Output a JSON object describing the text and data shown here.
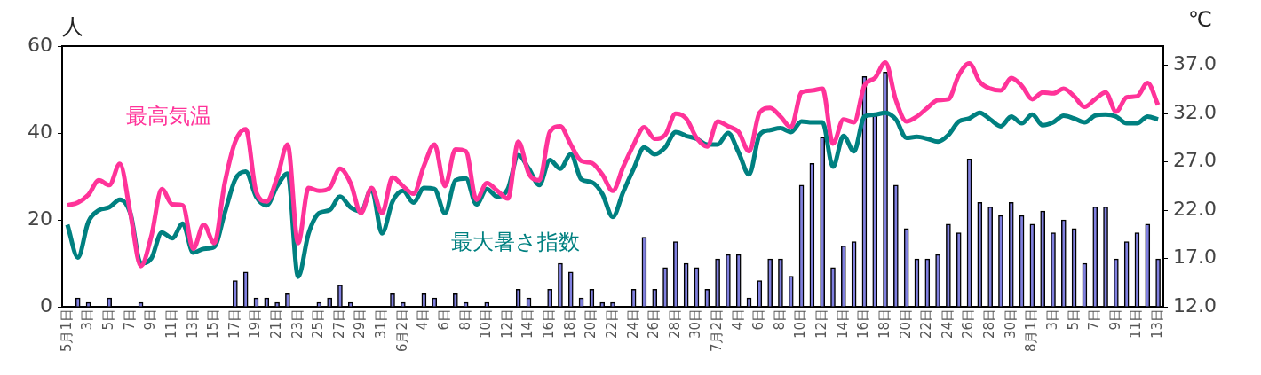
{
  "chart_data": {
    "type": "bar",
    "ylabel": "人",
    "y2label": "℃",
    "categories": [
      "5月1日",
      null,
      "3日",
      null,
      "5日",
      null,
      "7日",
      null,
      "9日",
      null,
      "11日",
      null,
      "13日",
      null,
      "15日",
      null,
      "17日",
      null,
      "19日",
      null,
      "21日",
      null,
      "23日",
      null,
      "25日",
      null,
      "27日",
      null,
      "29日",
      null,
      "31日",
      null,
      "6月2日",
      null,
      "4日",
      null,
      "6日",
      null,
      "8日",
      null,
      "10日",
      null,
      "12日",
      null,
      "14日",
      null,
      "16日",
      null,
      "18日",
      null,
      "20日",
      null,
      "22日",
      null,
      "24日",
      null,
      "26日",
      null,
      "28日",
      null,
      "30日",
      null,
      "7月2日",
      null,
      "4日",
      null,
      "6日",
      null,
      "8日",
      null,
      "10日",
      null,
      "12日",
      null,
      "14日",
      null,
      "16日",
      null,
      "18日",
      null,
      "20日",
      null,
      "22日",
      null,
      "24日",
      null,
      "26日",
      null,
      "28日",
      null,
      "30日",
      null,
      "8月1日",
      null,
      "3日",
      null,
      "5日",
      null,
      "7日",
      null,
      "9日",
      null,
      "11日",
      null,
      "13日"
    ],
    "series": [
      {
        "color": "#8080e0",
        "values": [
          0,
          2,
          1,
          0,
          2,
          0,
          0,
          1,
          0,
          0,
          0,
          0,
          0,
          0,
          0,
          0,
          6,
          8,
          2,
          2,
          1,
          3,
          0,
          0,
          1,
          2,
          5,
          1,
          0,
          0,
          0,
          3,
          1,
          0,
          3,
          2,
          0,
          3,
          1,
          0,
          1,
          0,
          0,
          4,
          2,
          0,
          4,
          10,
          8,
          2,
          4,
          1,
          1,
          0,
          4,
          16,
          4,
          9,
          15,
          10,
          9,
          4,
          11,
          12,
          12,
          2,
          6,
          11,
          11,
          7,
          28,
          33,
          39,
          9,
          14,
          15,
          53,
          44,
          54,
          28,
          18,
          11,
          11,
          12,
          19,
          17,
          34,
          24,
          23,
          21,
          24,
          21,
          19,
          22,
          17,
          20,
          18,
          10,
          23,
          23,
          11,
          15,
          17,
          19,
          11
        ]
      },
      {
        "type": "line",
        "name": "最高気温",
        "color": "#ff3399",
        "axis": "y2",
        "values": [
          22.5,
          22.8,
          23.6,
          25.1,
          24.6,
          26.8,
          21.7,
          16.2,
          19.3,
          24.2,
          22.6,
          22.5,
          18.0,
          20.5,
          18.6,
          24.8,
          29.1,
          30.4,
          23.9,
          22.9,
          25.4,
          28.8,
          18.6,
          24.3,
          24.0,
          24.3,
          26.3,
          24.8,
          21.7,
          24.3,
          21.7,
          25.4,
          24.5,
          23.7,
          26.6,
          28.8,
          24.5,
          28.3,
          28.1,
          23.1,
          24.8,
          24.0,
          23.2,
          29.1,
          25.8,
          25.1,
          30.1,
          30.7,
          28.8,
          27.1,
          26.9,
          25.7,
          24.0,
          26.5,
          28.8,
          30.6,
          29.4,
          29.8,
          32.0,
          31.5,
          29.5,
          28.6,
          31.2,
          30.7,
          30.1,
          28.1,
          32.1,
          32.6,
          31.7,
          30.6,
          34.2,
          34.4,
          34.6,
          28.9,
          31.4,
          31.1,
          34.9,
          35.7,
          37.3,
          33.4,
          31.2,
          31.7,
          32.6,
          33.4,
          33.5,
          36.0,
          37.2,
          35.3,
          34.6,
          34.4,
          35.7,
          34.9,
          33.5,
          34.2,
          34.1,
          34.6,
          33.8,
          32.7,
          33.5,
          34.2,
          32.2,
          33.7,
          33.8,
          35.2,
          32.9
        ]
      },
      {
        "type": "line",
        "name": "最大暑さ指数",
        "color": "#008080",
        "axis": "y2",
        "values": [
          20.5,
          17.1,
          20.8,
          22.0,
          22.3,
          23.1,
          21.7,
          16.5,
          17.0,
          19.7,
          19.1,
          20.6,
          17.6,
          18.0,
          18.2,
          21.7,
          25.2,
          26.0,
          23.4,
          22.5,
          24.5,
          25.8,
          15.1,
          19.6,
          21.7,
          22.0,
          23.4,
          22.3,
          21.9,
          24.2,
          19.6,
          22.9,
          24.0,
          22.8,
          24.3,
          24.2,
          21.7,
          25.1,
          25.3,
          22.6,
          24.2,
          23.4,
          24.2,
          27.7,
          26.3,
          24.6,
          27.2,
          26.3,
          27.8,
          25.2,
          24.9,
          23.7,
          21.3,
          23.9,
          26.3,
          28.5,
          27.8,
          28.5,
          30.1,
          29.7,
          29.4,
          28.8,
          28.8,
          30.0,
          28.0,
          25.7,
          29.8,
          30.3,
          30.5,
          30.1,
          31.2,
          31.1,
          31.1,
          26.5,
          29.7,
          28.1,
          31.7,
          31.9,
          32.1,
          31.4,
          29.5,
          29.6,
          29.4,
          29.1,
          29.8,
          31.2,
          31.5,
          32.1,
          31.4,
          30.7,
          31.7,
          31.0,
          31.9,
          30.8,
          31.1,
          31.8,
          31.5,
          31.1,
          31.8,
          31.9,
          31.7,
          31.0,
          31.0,
          31.7,
          31.4
        ]
      }
    ],
    "ylim": [
      0,
      60
    ],
    "yticks": [
      0,
      20,
      40,
      60
    ],
    "y2lim": [
      12,
      39
    ],
    "y2ticks": [
      {
        "value": 12,
        "label": "12.0"
      },
      {
        "value": 17,
        "label": "17.0"
      },
      {
        "value": 22,
        "label": "22.0"
      },
      {
        "value": 27,
        "label": "27.0"
      },
      {
        "value": 32,
        "label": "32.0"
      },
      {
        "value": 37,
        "label": "37.0"
      }
    ],
    "grid": false,
    "legend": false
  }
}
